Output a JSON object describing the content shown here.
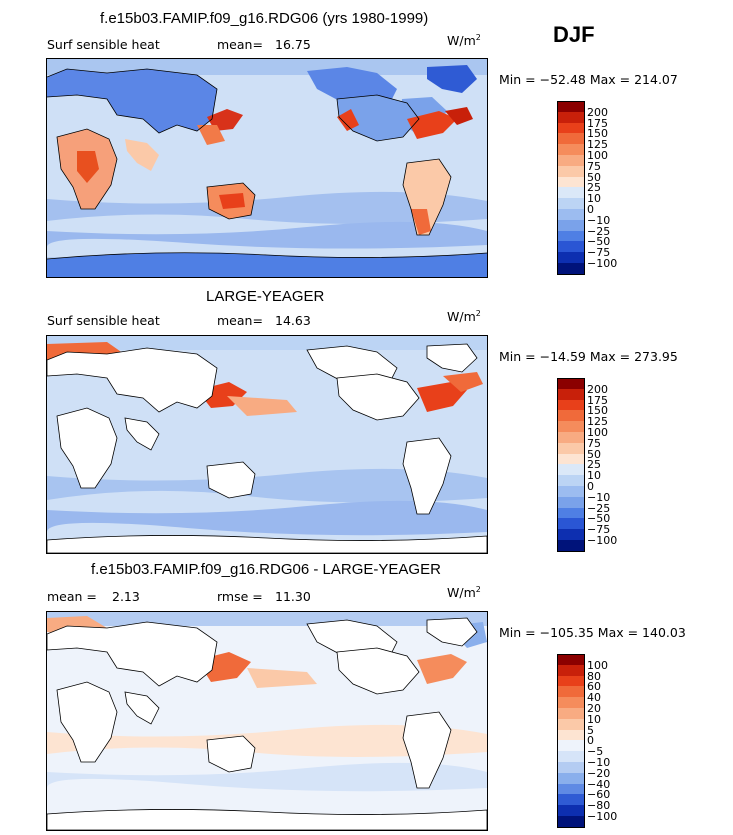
{
  "season": "DJF",
  "panels": [
    {
      "title": "f.e15b03.FAMIP.f09_g16.RDG06 (yrs 1980-1999)",
      "variable": "Surf sensible heat",
      "stat1_label": "mean=",
      "stat1_value": "16.75",
      "stat2_label": "",
      "stat2_value": "",
      "units": "W/m",
      "units_sup": "2",
      "minmax": "Min = −52.48  Max = 214.07",
      "colorbar": {
        "labels": [
          "200",
          "175",
          "150",
          "125",
          "100",
          "75",
          "50",
          "25",
          "10",
          "0",
          "−10",
          "−25",
          "−50",
          "−75",
          "−100"
        ],
        "colors": [
          "#8b0000",
          "#c8200a",
          "#e8401a",
          "#f06a3a",
          "#f58c5c",
          "#f8ab82",
          "#fbc9a8",
          "#fde4d2",
          "#dbe8f8",
          "#bcd4f4",
          "#9cbcf0",
          "#7aa2ea",
          "#4f7fe4",
          "#2a56d4",
          "#0d2fb0",
          "#00137a"
        ]
      },
      "map_field": "large-positive"
    },
    {
      "title": "LARGE-YEAGER",
      "variable": "Surf sensible heat",
      "stat1_label": "mean=",
      "stat1_value": "14.63",
      "stat2_label": "",
      "stat2_value": "",
      "units": "W/m",
      "units_sup": "2",
      "minmax": "Min = −14.59  Max = 273.95",
      "colorbar": {
        "labels": [
          "200",
          "175",
          "150",
          "125",
          "100",
          "75",
          "50",
          "25",
          "10",
          "0",
          "−10",
          "−25",
          "−50",
          "−75",
          "−100"
        ],
        "colors": [
          "#8b0000",
          "#c8200a",
          "#e8401a",
          "#f06a3a",
          "#f58c5c",
          "#f8ab82",
          "#fbc9a8",
          "#fde4d2",
          "#dbe8f8",
          "#bcd4f4",
          "#9cbcf0",
          "#7aa2ea",
          "#4f7fe4",
          "#2a56d4",
          "#0d2fb0",
          "#00137a"
        ]
      },
      "map_field": "ocean-only"
    },
    {
      "title": "f.e15b03.FAMIP.f09_g16.RDG06 - LARGE-YEAGER",
      "variable": "",
      "stat1_label": "mean =",
      "stat1_value": "2.13",
      "stat2_label": "rmse =",
      "stat2_value": "11.30",
      "units": "W/m",
      "units_sup": "2",
      "minmax": "Min = −105.35  Max = 140.03",
      "colorbar": {
        "labels": [
          "100",
          "80",
          "60",
          "40",
          "20",
          "10",
          "5",
          "0",
          "−5",
          "−10",
          "−20",
          "−40",
          "−60",
          "−80",
          "−100"
        ],
        "colors": [
          "#8b0000",
          "#c8200a",
          "#e8401a",
          "#f06a3a",
          "#f58c5c",
          "#f8ab82",
          "#fbc9a8",
          "#fde4d2",
          "#eef3fb",
          "#d6e4f8",
          "#b4ccf2",
          "#8aafec",
          "#5f8ae4",
          "#2f5bd4",
          "#0d2fb0",
          "#00137a"
        ]
      },
      "map_field": "difference"
    }
  ]
}
